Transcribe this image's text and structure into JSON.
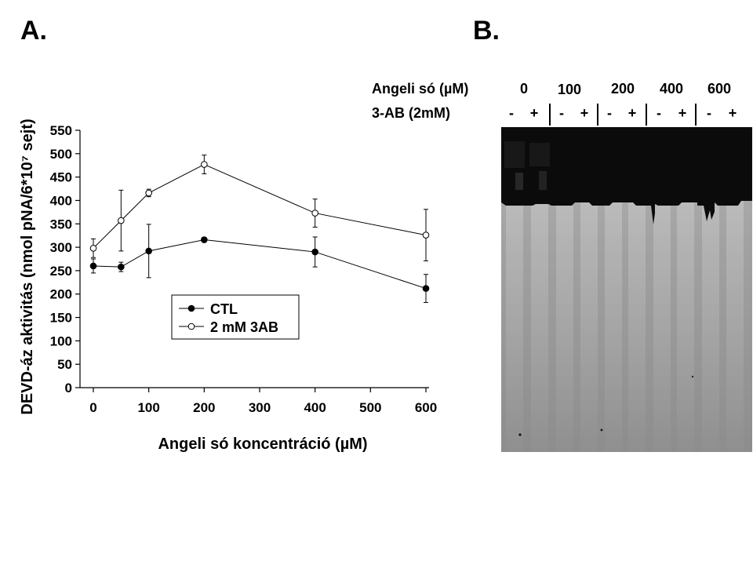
{
  "panel_a_label": "A.",
  "panel_b_label": "B.",
  "chart_data": {
    "type": "line",
    "xlabel": "Angeli só koncentráció (µM)",
    "ylabel": "DEVD-áz aktivitás (nmol pNA/6*10⁷ sejt)",
    "xlim": [
      0,
      600
    ],
    "ylim": [
      0,
      550
    ],
    "xticks": [
      0,
      100,
      200,
      300,
      400,
      500,
      600
    ],
    "yticks": [
      0,
      50,
      100,
      150,
      200,
      250,
      300,
      350,
      400,
      450,
      500,
      550
    ],
    "grid": false,
    "legend_position": "center",
    "series": [
      {
        "name": "CTL",
        "marker": "filled-circle",
        "color": "#000000",
        "x": [
          0,
          50,
          100,
          200,
          400,
          600
        ],
        "y": [
          260,
          258,
          292,
          316,
          290,
          212
        ],
        "err": [
          15,
          10,
          57,
          5,
          32,
          30
        ]
      },
      {
        "name": "2 mM 3AB",
        "marker": "open-circle",
        "color": "#000000",
        "x": [
          0,
          50,
          100,
          200,
          400,
          600
        ],
        "y": [
          298,
          357,
          416,
          477,
          373,
          326
        ],
        "err": [
          20,
          65,
          8,
          20,
          30,
          55
        ]
      }
    ]
  },
  "gel": {
    "header_row1_label": "Angeli só (µM)",
    "header_row2_label": "3-AB (2mM)",
    "concentrations": [
      "0",
      "100",
      "200",
      "400",
      "600"
    ],
    "lane_signs": [
      "-",
      "+",
      "-",
      "+",
      "-",
      "+",
      "-",
      "+",
      "-",
      "+"
    ]
  }
}
